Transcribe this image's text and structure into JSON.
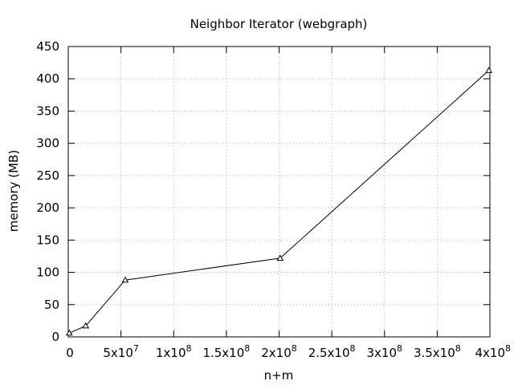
{
  "chart_data": {
    "type": "line",
    "title": "Neighbor Iterator (webgraph)",
    "xlabel": "n+m",
    "ylabel": "memory (MB)",
    "xlim": [
      0,
      400000000
    ],
    "ylim": [
      0,
      450
    ],
    "grid": true,
    "legend": "none",
    "x_ticks": [
      {
        "value": 0,
        "mantissa": "0",
        "exp": ""
      },
      {
        "value": 50000000,
        "mantissa": "5x10",
        "exp": "7"
      },
      {
        "value": 100000000,
        "mantissa": "1x10",
        "exp": "8"
      },
      {
        "value": 150000000,
        "mantissa": "1.5x10",
        "exp": "8"
      },
      {
        "value": 200000000,
        "mantissa": "2x10",
        "exp": "8"
      },
      {
        "value": 250000000,
        "mantissa": "2.5x10",
        "exp": "8"
      },
      {
        "value": 300000000,
        "mantissa": "3x10",
        "exp": "8"
      },
      {
        "value": 350000000,
        "mantissa": "3.5x10",
        "exp": "8"
      },
      {
        "value": 400000000,
        "mantissa": "4x10",
        "exp": "8"
      }
    ],
    "y_ticks": [
      0,
      50,
      100,
      150,
      200,
      250,
      300,
      350,
      400,
      450
    ],
    "series": [
      {
        "marker": "open-triangle",
        "color": "#000000",
        "points": [
          {
            "x": 1000000,
            "y": 6
          },
          {
            "x": 16500000,
            "y": 17
          },
          {
            "x": 54000000,
            "y": 88
          },
          {
            "x": 201000000,
            "y": 122
          },
          {
            "x": 399000000,
            "y": 413
          }
        ]
      }
    ]
  }
}
